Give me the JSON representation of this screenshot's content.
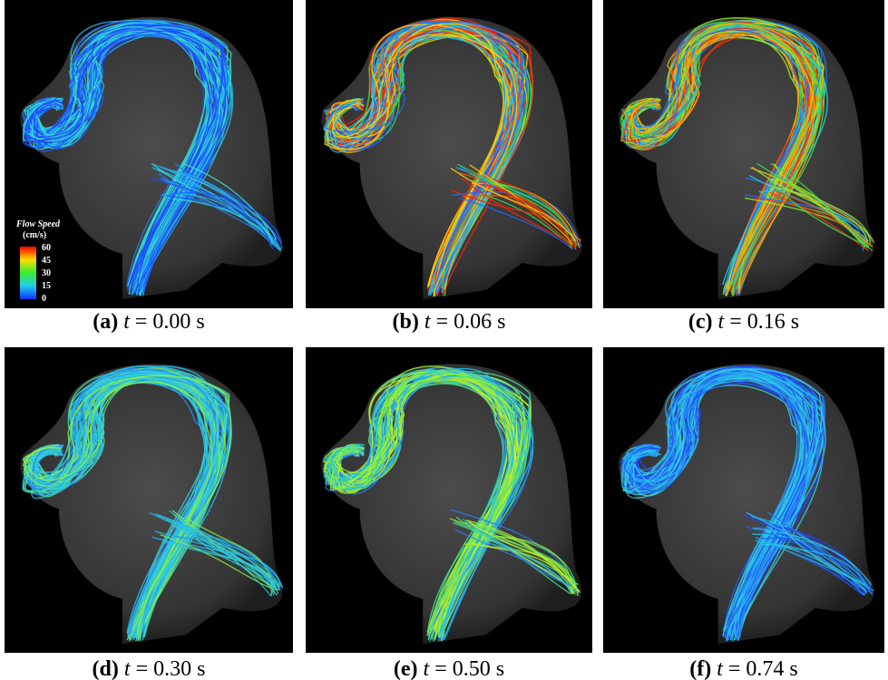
{
  "figure": {
    "panels": [
      {
        "label": "(a)",
        "variable": "t",
        "value": "= 0.00 s"
      },
      {
        "label": "(b)",
        "variable": "t",
        "value": "= 0.06 s"
      },
      {
        "label": "(c)",
        "variable": "t",
        "value": "= 0.16 s"
      },
      {
        "label": "(d)",
        "variable": "t",
        "value": "= 0.30 s"
      },
      {
        "label": "(e)",
        "variable": "t",
        "value": "= 0.50 s"
      },
      {
        "label": "(f)",
        "variable": "t",
        "value": "= 0.74 s"
      }
    ],
    "colorbar": {
      "title": "Flow Speed",
      "unit": "(cm/s)",
      "ticks": [
        "60",
        "45",
        "30",
        "15",
        "0"
      ]
    }
  }
}
